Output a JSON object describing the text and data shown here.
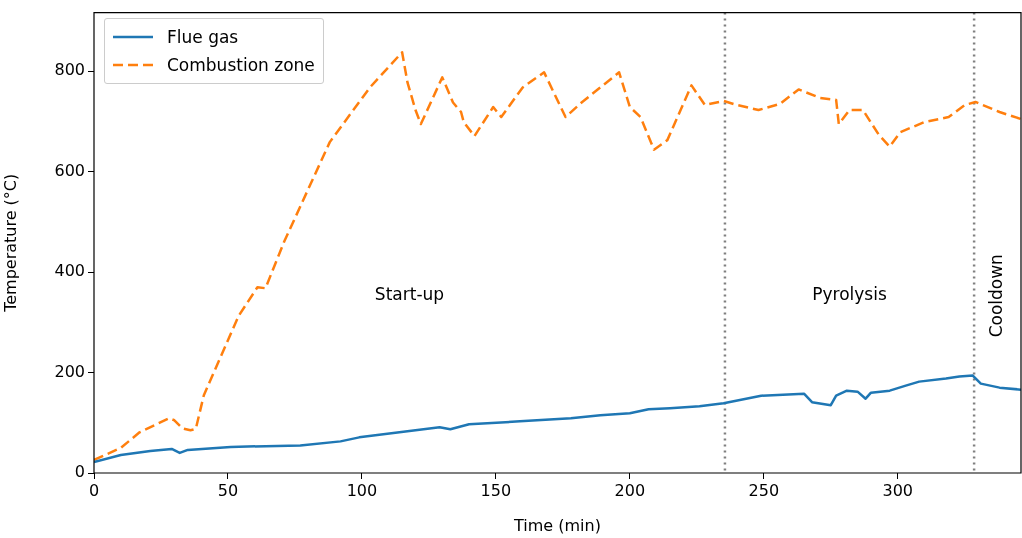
{
  "chart_data": {
    "type": "line",
    "xlabel": "Time (min)",
    "ylabel": "Temperature (°C)",
    "xlim": [
      0,
      346
    ],
    "ylim": [
      0,
      917
    ],
    "xticks": [
      0,
      50,
      100,
      150,
      200,
      250,
      300
    ],
    "yticks": [
      0,
      200,
      400,
      600,
      800
    ],
    "grid": false,
    "legend": "top left",
    "marker": "none",
    "series": [
      {
        "name": "Flue gas",
        "color": "#1f77b4",
        "line_style": "solid",
        "x": [
          0,
          10,
          21,
          29,
          32,
          35,
          51,
          77,
          92,
          99,
          114,
          129,
          133,
          140,
          159,
          178,
          189,
          200,
          207,
          215,
          226,
          235,
          249,
          265,
          268,
          275,
          277,
          281,
          285,
          288,
          290,
          297,
          303,
          308,
          318,
          323,
          328,
          331,
          338,
          346
        ],
        "values": [
          22,
          36,
          44,
          48,
          40,
          46,
          52,
          55,
          63,
          71,
          81,
          91,
          87,
          97,
          103,
          109,
          115,
          119,
          127,
          129,
          133,
          139,
          154,
          158,
          141,
          135,
          154,
          164,
          162,
          148,
          160,
          164,
          174,
          182,
          188,
          192,
          194,
          178,
          170,
          166
        ]
      },
      {
        "name": "Combustion zone",
        "color": "#ff7f0e",
        "line_style": "dashed",
        "x": [
          0,
          10,
          17,
          28,
          30,
          33,
          36,
          38,
          41,
          54,
          61,
          64,
          71,
          88,
          103,
          115,
          117,
          120,
          122,
          130,
          134,
          137,
          138,
          142,
          149,
          152,
          160,
          168,
          176,
          182,
          189,
          196,
          200,
          204,
          209,
          214,
          223,
          228,
          235,
          240,
          248,
          256,
          263,
          271,
          277,
          278,
          282,
          287,
          293,
          297,
          301,
          310,
          319,
          325,
          329,
          338,
          346
        ],
        "values": [
          26,
          50,
          81,
          109,
          105,
          89,
          85,
          88,
          155,
          313,
          370,
          368,
          461,
          659,
          768,
          838,
          778,
          723,
          695,
          788,
          738,
          719,
          699,
          671,
          729,
          709,
          768,
          798,
          709,
          738,
          768,
          798,
          729,
          709,
          644,
          663,
          772,
          733,
          741,
          733,
          723,
          735,
          764,
          747,
          743,
          695,
          723,
          723,
          673,
          650,
          679,
          699,
          709,
          733,
          739,
          719,
          705
        ]
      }
    ],
    "ref_lines": [
      {
        "axis": "x",
        "value": 235.5,
        "color": "#808080",
        "line_style": "dotted"
      },
      {
        "axis": "x",
        "value": 328.5,
        "color": "#808080",
        "line_style": "dotted"
      }
    ],
    "annotations": [
      "Start-up",
      "Pyrolysis",
      "Cooldown"
    ]
  }
}
